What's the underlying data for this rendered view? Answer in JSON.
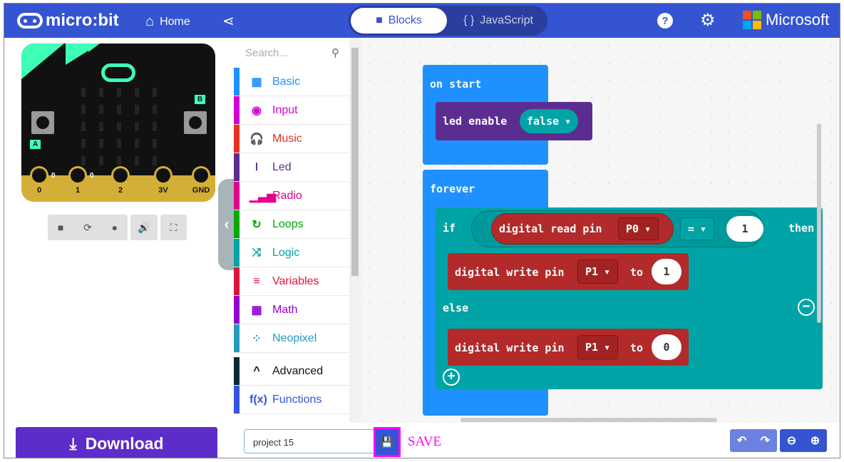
{
  "header": {
    "brand": "micro:bit",
    "home": "Home",
    "tabs": [
      {
        "label": "Blocks",
        "active": true
      },
      {
        "label": "JavaScript",
        "active": false
      }
    ],
    "js_icon": "{ }",
    "company": "Microsoft",
    "help_icon": "?",
    "icons": [
      "home-icon",
      "share-icon",
      "help-icon",
      "gear-icon"
    ]
  },
  "simulator": {
    "buttons": [
      "A",
      "B"
    ],
    "pins": [
      "0",
      "1",
      "2",
      "3V",
      "GND"
    ],
    "pin_values": [
      "0",
      "0"
    ],
    "controls": [
      "stop",
      "restart",
      "slow-motion",
      "mute",
      "fullscreen"
    ]
  },
  "download": "Download",
  "toolbox": {
    "search_placeholder": "Search...",
    "categories": [
      {
        "label": "Basic",
        "color": "#1e90ff",
        "icon": "▦"
      },
      {
        "label": "Input",
        "color": "#d400d4",
        "icon": "◉"
      },
      {
        "label": "Music",
        "color": "#e63022",
        "icon": "🎧"
      },
      {
        "label": "Led",
        "color": "#5c2d91",
        "icon": "⏽"
      },
      {
        "label": "Radio",
        "color": "#e3008c",
        "icon": "▁▃▅"
      },
      {
        "label": "Loops",
        "color": "#00aa00",
        "icon": "↻"
      },
      {
        "label": "Logic",
        "color": "#00a4a6",
        "icon": "⤨"
      },
      {
        "label": "Variables",
        "color": "#dc143c",
        "icon": "≡"
      },
      {
        "label": "Math",
        "color": "#9400d3",
        "icon": "▦"
      },
      {
        "label": "Neopixel",
        "color": "#2699bf",
        "icon": "⁘"
      },
      {
        "label": "Advanced",
        "color": "#0b2a36",
        "icon": "^"
      },
      {
        "label": "Functions",
        "color": "#3455db",
        "icon": "f(x)"
      }
    ]
  },
  "workspace": {
    "on_start": "on start",
    "led_enable": "led enable",
    "false": "false",
    "forever": "forever",
    "if": "if",
    "digital_read_pin": "digital read pin",
    "p0": "P0",
    "eq": "=",
    "one": "1",
    "then": "then",
    "digital_write_pin": "digital write pin",
    "p1": "P1",
    "to": "to",
    "val1": "1",
    "else": "else",
    "val0": "0"
  },
  "footer": {
    "project_name": "project 15",
    "save_label": "SAVE"
  }
}
